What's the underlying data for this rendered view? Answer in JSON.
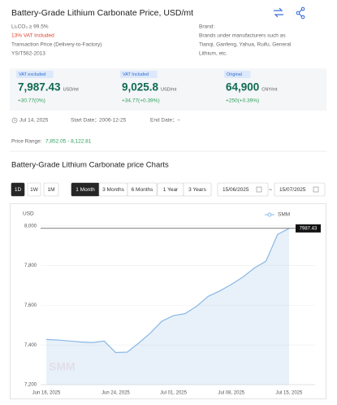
{
  "header": {
    "title": "Battery-Grade Lithium Carbonate Price, USD/mt",
    "specs": [
      "Li₂CO₃ ≥ 99.5%",
      "13% VAT Included",
      "Transaction Price (Delivery-to-Factory)",
      "YS/T582-2013"
    ],
    "brand_label": "Brand:",
    "brand_lines": [
      "Brands under manufacturers such as",
      "Tianqi, Ganfeng, Yahua, Ruifu, General",
      "Lithium, etc."
    ]
  },
  "prices": [
    {
      "badge": "VAT excluded",
      "value": "7,987.43",
      "unit": "USD/mt",
      "change": "+30.77(0%)"
    },
    {
      "badge": "VAT Included",
      "value": "9,025.8",
      "unit": "USD/mt",
      "change": "+34.77(+0.39%)"
    },
    {
      "badge": "Original",
      "value": "64,900",
      "unit": "CNY/mt",
      "change": "+250(+0.39%)"
    }
  ],
  "dates": {
    "current": "Jul 14, 2025",
    "start_label": "Start Date：",
    "start": "2006-12-25",
    "end_label": "End Date：",
    "end": "~"
  },
  "range": {
    "label": "Price Range:",
    "value": "7,852.05 - 8,122.81"
  },
  "section_title": "Battery-Grade Lithium Carbonate price Charts",
  "intervals": [
    "1D",
    "1W",
    "1M"
  ],
  "periods": [
    "1 Month",
    "3 Months",
    "6 Months",
    "1 Year",
    "3 Years"
  ],
  "date_inputs": {
    "from": "15/06/2025",
    "sep": "~",
    "to": "15/07/2025"
  },
  "chart_data": {
    "type": "area",
    "y_label": "USD",
    "watermark": "SMM",
    "categories": [
      "Jun 16, 2025",
      null,
      null,
      null,
      null,
      null,
      "Jun 24, 2025",
      null,
      null,
      null,
      null,
      "Jul 01, 2025",
      null,
      null,
      null,
      null,
      "Jul 08, 2025",
      null,
      null,
      null,
      null,
      "Jul 15, 2025"
    ],
    "series": [
      {
        "name": "SMM",
        "color": "#8ab8e6",
        "values": [
          7428,
          7425,
          7420,
          7415,
          7412,
          7420,
          7362,
          7364,
          7410,
          7460,
          7520,
          7548,
          7558,
          7595,
          7645,
          7672,
          7705,
          7742,
          7788,
          7822,
          7956.66,
          7987.43
        ]
      }
    ],
    "ylim": [
      7200,
      8040
    ],
    "yticks": [
      {
        "value": 7200,
        "label": "7,200"
      },
      {
        "value": 7400,
        "label": "7,400"
      },
      {
        "value": 7600,
        "label": "7,600"
      },
      {
        "value": 7800,
        "label": "7,800"
      },
      {
        "value": 8000,
        "label": "8,000"
      }
    ],
    "grid": true
  }
}
